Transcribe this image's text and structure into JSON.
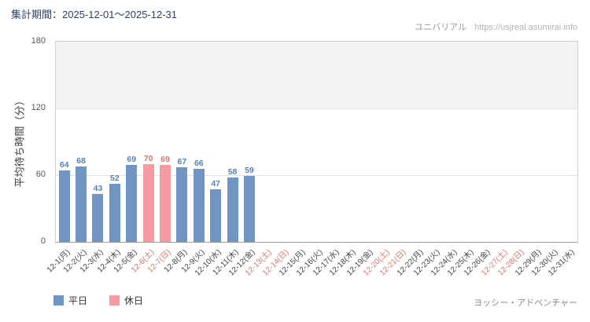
{
  "header": {
    "period": "集計期間：2025-12-01～2025-12-31",
    "brand": "ユニバリアル",
    "url": "https://usjreal.asumirai.info"
  },
  "chart_data": {
    "type": "bar",
    "title": "",
    "ylabel": "平均待ち時間（分）",
    "xlabel": "",
    "ylim": [
      0,
      180
    ],
    "yticks": [
      0,
      60,
      120,
      180
    ],
    "grid": true,
    "legend_position": "bottom-left",
    "categories": [
      "12-1(月)",
      "12-2(火)",
      "12-3(水)",
      "12-4(木)",
      "12-5(金)",
      "12-6(土)",
      "12-7(日)",
      "12-8(月)",
      "12-9(火)",
      "12-10(水)",
      "12-11(木)",
      "12-12(金)",
      "12-13(土)",
      "12-14(日)",
      "12-15(月)",
      "12-16(火)",
      "12-17(水)",
      "12-18(木)",
      "12-19(金)",
      "12-20(土)",
      "12-21(日)",
      "12-22(月)",
      "12-23(火)",
      "12-24(水)",
      "12-25(木)",
      "12-26(金)",
      "12-27(土)",
      "12-28(日)",
      "12-29(月)",
      "12-30(火)",
      "12-31(水)"
    ],
    "day_types": [
      "weekday",
      "weekday",
      "weekday",
      "weekday",
      "weekday",
      "weekend",
      "weekend",
      "weekday",
      "weekday",
      "weekday",
      "weekday",
      "weekday",
      "weekend",
      "weekend",
      "weekday",
      "weekday",
      "weekday",
      "weekday",
      "weekday",
      "weekend",
      "weekend",
      "weekday",
      "weekday",
      "weekday",
      "weekday",
      "weekday",
      "weekend",
      "weekend",
      "weekday",
      "weekday",
      "weekday"
    ],
    "values": [
      64,
      68,
      43,
      52,
      69,
      70,
      69,
      67,
      66,
      47,
      58,
      59,
      null,
      null,
      null,
      null,
      null,
      null,
      null,
      null,
      null,
      null,
      null,
      null,
      null,
      null,
      null,
      null,
      null,
      null,
      null
    ],
    "colors": {
      "weekday": "#7195c3",
      "weekend": "#f59ba1",
      "weekday_text": "#5581b5",
      "weekend_text": "#e0756d"
    }
  },
  "legend": {
    "weekday": "平日",
    "weekend": "休日"
  },
  "footer": {
    "attraction": "ヨッシー・アドベンチャー"
  }
}
